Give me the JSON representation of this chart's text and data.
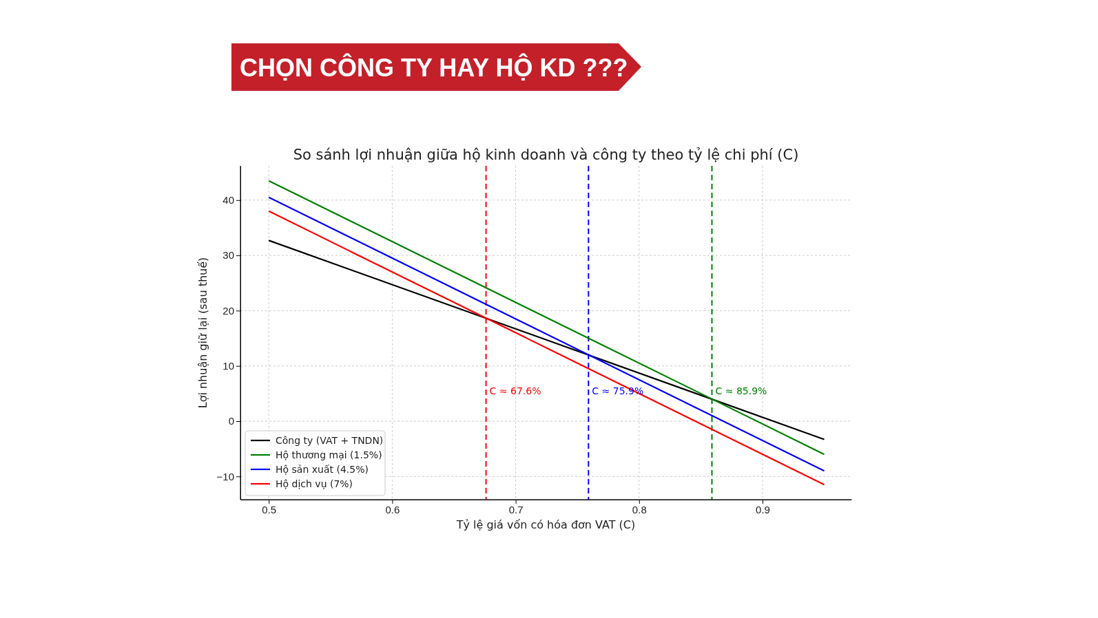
{
  "chart_data": {
    "type": "line",
    "title": "CHỌN CÔNG TY HAY HỘ KD ???",
    "subtitle": "So sánh lợi nhuận giữa hộ kinh doanh và công ty theo tỷ lệ chi phí (C)",
    "xlabel": "Tỷ lệ giá vốn có hóa đơn VAT (C)",
    "ylabel": "Lợi nhuận giữ lại (sau thuế)",
    "x": [
      0.5,
      0.95
    ],
    "series": [
      {
        "name": "Công ty (VAT + TNDN)",
        "color": "#000000",
        "values": [
          32.7,
          -3.3
        ]
      },
      {
        "name": "Hộ thương mại (1.5%)",
        "color": "#008000",
        "values": [
          43.5,
          -6
        ]
      },
      {
        "name": "Hộ sản xuất (4.5%)",
        "color": "#0000ff",
        "values": [
          40.5,
          -9
        ]
      },
      {
        "name": "Hộ dịch vụ (7%)",
        "color": "#ff0000",
        "values": [
          38,
          -11.5
        ]
      }
    ],
    "xlim": [
      0.477,
      0.972
    ],
    "ylim": [
      -14.2,
      46.2
    ],
    "xticks": [
      0.5,
      0.6,
      0.7,
      0.8,
      0.9
    ],
    "yticks": [
      -10,
      0,
      10,
      20,
      30,
      40
    ],
    "ref_lines": [
      {
        "axis": "x",
        "value": 0.676,
        "label": "C ≈ 67.6%",
        "color": "#ff0000",
        "line_style": "dashed"
      },
      {
        "axis": "x",
        "value": 0.759,
        "label": "C ≈ 75.9%",
        "color": "#0000ff",
        "line_style": "dashed"
      },
      {
        "axis": "x",
        "value": 0.859,
        "label": "C ≈ 85.9%",
        "color": "#008000",
        "line_style": "dashed"
      }
    ],
    "grid": true,
    "legend": "bottom left",
    "line_style": "solid",
    "marker": "none"
  }
}
